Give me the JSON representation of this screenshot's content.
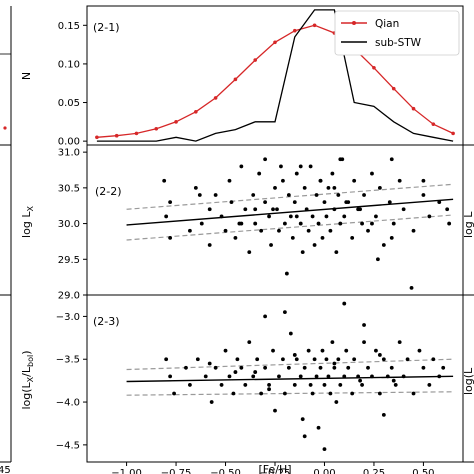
{
  "figure": {
    "left_partial_ticks": [
      "45"
    ],
    "right_partial_text": [
      "log L",
      "log(L"
    ]
  },
  "chart_data": [
    {
      "id": "p1",
      "type": "line",
      "panel_label": "(2-1)",
      "ylabel": "N",
      "xlim": [
        -1.2,
        0.7
      ],
      "ylim": [
        -0.005,
        0.175
      ],
      "yticks": [
        0.0,
        0.05,
        0.1,
        0.15
      ],
      "ytick_labels": [
        "0.00",
        "0.05",
        "0.10",
        "0.15"
      ],
      "legend": {
        "position": "top-right"
      },
      "series": [
        {
          "name": "Qian",
          "color": "#d62728",
          "marker": "dot",
          "x": [
            -1.15,
            -1.05,
            -0.95,
            -0.85,
            -0.75,
            -0.65,
            -0.55,
            -0.45,
            -0.35,
            -0.25,
            -0.15,
            -0.05,
            0.05,
            0.15,
            0.25,
            0.35,
            0.45,
            0.55,
            0.65
          ],
          "y": [
            0.005,
            0.007,
            0.01,
            0.016,
            0.025,
            0.038,
            0.056,
            0.08,
            0.105,
            0.128,
            0.143,
            0.15,
            0.14,
            0.12,
            0.095,
            0.068,
            0.042,
            0.022,
            0.01
          ]
        },
        {
          "name": "sub-STW",
          "color": "#000000",
          "marker": "none",
          "x": [
            -1.15,
            -1.05,
            -0.95,
            -0.85,
            -0.75,
            -0.65,
            -0.55,
            -0.45,
            -0.35,
            -0.25,
            -0.15,
            -0.05,
            0.05,
            0.15,
            0.25,
            0.35,
            0.45,
            0.55,
            0.65
          ],
          "y": [
            0.0,
            0.0,
            0.0,
            0.0,
            0.005,
            0.0,
            0.01,
            0.015,
            0.025,
            0.025,
            0.135,
            0.17,
            0.17,
            0.05,
            0.045,
            0.025,
            0.01,
            0.005,
            0.0
          ]
        }
      ]
    },
    {
      "id": "p2",
      "type": "scatter",
      "panel_label": "(2-2)",
      "ylabel": "log L",
      "ylabel_sub": "X",
      "xlim": [
        -1.2,
        0.7
      ],
      "ylim": [
        29.0,
        31.1
      ],
      "yticks": [
        29.0,
        29.5,
        30.0,
        30.5,
        31.0
      ],
      "ytick_labels": [
        "29.0",
        "29.5",
        "30.0",
        "30.5",
        "31.0"
      ],
      "fit": {
        "x": [
          -1.0,
          0.65
        ],
        "y": [
          29.98,
          30.34
        ]
      },
      "fit_bounds": [
        {
          "x": [
            -1.0,
            0.65
          ],
          "y": [
            30.2,
            30.55
          ]
        },
        {
          "x": [
            -1.0,
            0.65
          ],
          "y": [
            29.77,
            30.12
          ]
        }
      ],
      "points": {
        "x": [
          -0.81,
          -0.8,
          -0.78,
          -0.78,
          -0.68,
          -0.65,
          -0.62,
          -0.58,
          -0.58,
          -0.55,
          -0.52,
          -0.5,
          -0.48,
          -0.47,
          -0.45,
          -0.43,
          -0.42,
          -0.4,
          -0.38,
          -0.36,
          -0.35,
          -0.33,
          -0.32,
          -0.3,
          -0.28,
          -0.27,
          -0.25,
          -0.24,
          -0.23,
          -0.21,
          -0.2,
          -0.19,
          -0.18,
          -0.17,
          -0.16,
          -0.15,
          -0.14,
          -0.12,
          -0.11,
          -0.1,
          -0.09,
          -0.08,
          -0.07,
          -0.06,
          -0.05,
          -0.04,
          -0.03,
          -0.02,
          -0.01,
          0.0,
          0.01,
          0.02,
          0.03,
          0.04,
          0.05,
          0.06,
          0.07,
          0.08,
          0.09,
          0.1,
          0.12,
          0.14,
          0.15,
          0.17,
          0.19,
          0.2,
          0.22,
          0.24,
          0.26,
          0.28,
          0.3,
          0.33,
          0.35,
          0.38,
          0.4,
          0.45,
          0.5,
          0.53,
          0.58,
          0.63,
          -0.3,
          -0.22,
          -0.12,
          -0.02,
          0.08,
          0.18,
          0.27,
          0.34,
          0.5,
          0.62,
          -0.42,
          -0.14,
          0.11,
          0.34,
          -0.35,
          0.05,
          0.24,
          -0.63,
          -0.26,
          0.44
        ],
        "y": [
          30.6,
          30.1,
          30.3,
          29.8,
          29.9,
          30.5,
          30.0,
          29.7,
          30.2,
          30.4,
          30.1,
          29.9,
          30.6,
          30.3,
          29.8,
          30.0,
          30.8,
          30.2,
          29.6,
          30.4,
          30.0,
          30.7,
          29.9,
          30.3,
          30.1,
          29.7,
          30.5,
          30.2,
          29.9,
          30.6,
          30.0,
          29.3,
          30.4,
          30.1,
          29.8,
          30.3,
          30.7,
          30.0,
          29.6,
          30.5,
          30.2,
          29.9,
          30.8,
          30.1,
          29.7,
          30.4,
          30.0,
          30.6,
          29.8,
          30.3,
          30.1,
          30.5,
          29.9,
          30.7,
          30.2,
          29.6,
          30.4,
          30.0,
          30.9,
          30.1,
          30.3,
          29.8,
          30.6,
          30.2,
          30.0,
          30.4,
          29.9,
          30.7,
          30.1,
          30.5,
          29.7,
          30.3,
          30.0,
          30.6,
          30.2,
          29.9,
          30.4,
          30.1,
          30.3,
          30.0,
          30.9,
          30.8,
          30.8,
          30.6,
          30.9,
          30.2,
          29.5,
          29.8,
          30.6,
          30.2,
          30.0,
          30.1,
          30.3,
          30.9,
          30.2,
          30.5,
          30.0,
          30.4,
          30.2,
          29.1
        ]
      }
    },
    {
      "id": "p3",
      "type": "scatter",
      "panel_label": "(2-3)",
      "ylabel": "log(L",
      "ylabel_sub1": "X",
      "ylabel_mid": "/L",
      "ylabel_sub2": "bol",
      "ylabel_end": ")",
      "xlim": [
        -1.2,
        0.7
      ],
      "ylim": [
        -4.7,
        -2.75
      ],
      "yticks": [
        -4.5,
        -4.0,
        -3.5,
        -3.0
      ],
      "ytick_labels": [
        "−4.5",
        "−4.0",
        "−3.5",
        "−3.0"
      ],
      "xticks": [
        -1.0,
        -0.75,
        -0.5,
        -0.25,
        0.0,
        0.25,
        0.5
      ],
      "xtick_labels": [
        "−1.00",
        "−0.75",
        "−0.50",
        "−0.25",
        "0.00",
        "0.25",
        "0.50"
      ],
      "xlabel": "[Fe/H]",
      "fit": {
        "x": [
          -1.0,
          0.65
        ],
        "y": [
          -3.76,
          -3.7
        ]
      },
      "fit_bounds": [
        {
          "x": [
            -1.0,
            0.65
          ],
          "y": [
            -3.62,
            -3.5
          ]
        },
        {
          "x": [
            -1.0,
            0.65
          ],
          "y": [
            -3.92,
            -3.88
          ]
        }
      ],
      "points": {
        "x": [
          -0.8,
          -0.78,
          -0.76,
          -0.7,
          -0.68,
          -0.64,
          -0.6,
          -0.57,
          -0.55,
          -0.52,
          -0.5,
          -0.48,
          -0.46,
          -0.44,
          -0.42,
          -0.4,
          -0.38,
          -0.36,
          -0.34,
          -0.32,
          -0.3,
          -0.28,
          -0.26,
          -0.25,
          -0.23,
          -0.21,
          -0.2,
          -0.18,
          -0.17,
          -0.15,
          -0.14,
          -0.12,
          -0.11,
          -0.1,
          -0.08,
          -0.07,
          -0.06,
          -0.05,
          -0.04,
          -0.03,
          -0.02,
          -0.01,
          0.0,
          0.01,
          0.02,
          0.03,
          0.04,
          0.05,
          0.06,
          0.07,
          0.08,
          0.1,
          0.11,
          0.12,
          0.14,
          0.15,
          0.17,
          0.19,
          0.2,
          0.22,
          0.24,
          0.26,
          0.28,
          0.3,
          0.32,
          0.34,
          0.36,
          0.38,
          0.4,
          0.42,
          0.45,
          0.48,
          0.5,
          0.53,
          0.55,
          0.58,
          0.6,
          -0.3,
          -0.2,
          -0.1,
          0.0,
          0.1,
          0.2,
          0.3,
          -0.15,
          0.05,
          0.18,
          -0.45,
          -0.28,
          0.28,
          -0.58,
          -0.35,
          0.35
        ],
        "y": [
          -3.5,
          -3.7,
          -3.9,
          -3.6,
          -3.8,
          -3.5,
          -3.7,
          -4.0,
          -3.6,
          -3.8,
          -3.4,
          -3.7,
          -3.9,
          -3.5,
          -3.6,
          -3.8,
          -3.3,
          -3.7,
          -3.5,
          -3.9,
          -3.6,
          -3.8,
          -3.4,
          -4.1,
          -3.7,
          -3.5,
          -3.9,
          -3.6,
          -3.2,
          -3.8,
          -3.5,
          -3.7,
          -4.2,
          -3.6,
          -3.4,
          -3.8,
          -3.9,
          -3.5,
          -3.7,
          -4.3,
          -3.6,
          -3.4,
          -3.8,
          -3.5,
          -3.7,
          -3.9,
          -3.3,
          -3.6,
          -4.0,
          -3.5,
          -3.8,
          -3.7,
          -3.4,
          -3.6,
          -3.9,
          -3.5,
          -3.7,
          -3.8,
          -3.3,
          -3.6,
          -3.7,
          -3.4,
          -3.9,
          -3.5,
          -3.7,
          -3.6,
          -3.8,
          -3.3,
          -3.7,
          -3.5,
          -3.9,
          -3.4,
          -3.6,
          -3.8,
          -3.5,
          -3.7,
          -3.6,
          -3.0,
          -2.95,
          -4.4,
          -4.55,
          -2.85,
          -3.1,
          -4.15,
          -3.45,
          -3.55,
          -3.75,
          -3.65,
          -3.85,
          -3.45,
          -3.55,
          -3.65,
          -3.75
        ]
      }
    }
  ]
}
